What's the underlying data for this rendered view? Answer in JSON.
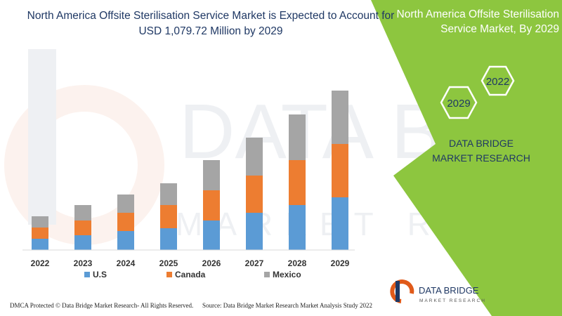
{
  "chart_data": {
    "type": "bar",
    "stacked": true,
    "title": "North America Offsite Sterilisation Service Market is Expected to Account for USD 1,079.72 Million by 2029",
    "categories": [
      "2022",
      "2023",
      "2024",
      "2025",
      "2026",
      "2027",
      "2028",
      "2029"
    ],
    "series": [
      {
        "name": "U.S",
        "color": "#5b9bd5",
        "values": [
          16,
          21,
          27,
          31,
          42,
          53,
          64,
          75
        ]
      },
      {
        "name": "Canada",
        "color": "#ed7d31",
        "values": [
          16,
          21,
          26,
          33,
          43,
          53,
          64,
          76
        ]
      },
      {
        "name": "Mexico",
        "color": "#a5a5a5",
        "values": [
          16,
          22,
          26,
          31,
          43,
          54,
          65,
          76
        ]
      }
    ],
    "xlabel": "",
    "ylabel": "",
    "yaxis_visible": false,
    "grid": false,
    "legend": "bottom"
  },
  "side_panel": {
    "title": "North America Offsite Sterilisation Service Market, By 2029",
    "hex_labels": [
      "2022",
      "2029"
    ],
    "company": "DATA BRIDGE MARKET RESEARCH",
    "background_color": "#8dc63f"
  },
  "logo": {
    "name": "DATA BRIDGE",
    "tagline": "MARKET RESEARCH"
  },
  "watermark_text": [
    "DATA BRIDGE",
    "MARKET RESEARCH"
  ],
  "footer": {
    "left": "DMCA Protected © Data Bridge Market Research- All Rights Reserved.",
    "right": "Source: Data Bridge Market Research Market Analysis Study 2022"
  }
}
